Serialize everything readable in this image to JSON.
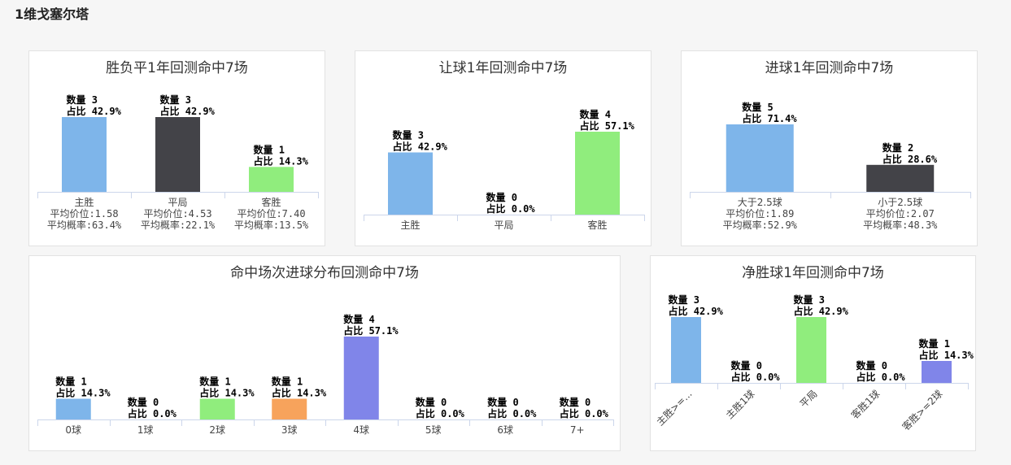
{
  "page": {
    "title": "1维戈塞尔塔"
  },
  "chart_data": [
    {
      "id": "c1",
      "type": "bar",
      "title": "胜负平1年回测命中7场",
      "categories": [
        "主胜",
        "平局",
        "客胜"
      ],
      "values": [
        3,
        3,
        1
      ],
      "value_labels": [
        "数量 3",
        "数量 3",
        "数量 1"
      ],
      "pct_labels": [
        "占比 42.9%",
        "占比 42.9%",
        "占比 14.3%"
      ],
      "extra_labels": [
        [
          "平均价位:1.58",
          "平均概率:63.4%"
        ],
        [
          "平均价位:4.53",
          "平均概率:22.1%"
        ],
        [
          "平均价位:7.40",
          "平均概率:13.5%"
        ]
      ],
      "colors": [
        "#7eb5ea",
        "#434348",
        "#90ed7d"
      ],
      "ylim": [
        0,
        3
      ]
    },
    {
      "id": "c2",
      "type": "bar",
      "title": "让球1年回测命中7场",
      "categories": [
        "主胜",
        "平局",
        "客胜"
      ],
      "values": [
        3,
        0,
        4
      ],
      "value_labels": [
        "数量 3",
        "数量 0",
        "数量 4"
      ],
      "pct_labels": [
        "占比 42.9%",
        "占比 0.0%",
        "占比 57.1%"
      ],
      "colors": [
        "#7eb5ea",
        "#434348",
        "#90ed7d"
      ],
      "ylim": [
        0,
        4
      ]
    },
    {
      "id": "c3",
      "type": "bar",
      "title": "进球1年回测命中7场",
      "categories": [
        "大于2.5球",
        "小于2.5球"
      ],
      "values": [
        5,
        2
      ],
      "value_labels": [
        "数量 5",
        "数量 2"
      ],
      "pct_labels": [
        "占比 71.4%",
        "占比 28.6%"
      ],
      "extra_labels": [
        [
          "平均价位:1.89",
          "平均概率:52.9%"
        ],
        [
          "平均价位:2.07",
          "平均概率:48.3%"
        ]
      ],
      "colors": [
        "#7eb5ea",
        "#434348"
      ],
      "ylim": [
        0,
        5
      ]
    },
    {
      "id": "c4",
      "type": "bar",
      "title": "命中场次进球分布回测命中7场",
      "categories": [
        "0球",
        "1球",
        "2球",
        "3球",
        "4球",
        "5球",
        "6球",
        "7+"
      ],
      "values": [
        1,
        0,
        1,
        1,
        4,
        0,
        0,
        0
      ],
      "value_labels": [
        "数量 1",
        "数量 0",
        "数量 1",
        "数量 1",
        "数量 4",
        "数量 0",
        "数量 0",
        "数量 0"
      ],
      "pct_labels": [
        "占比 14.3%",
        "占比 0.0%",
        "占比 14.3%",
        "占比 14.3%",
        "占比 57.1%",
        "占比 0.0%",
        "占比 0.0%",
        "占比 0.0%"
      ],
      "colors": [
        "#7eb5ea",
        "#434348",
        "#90ed7d",
        "#f7a35c",
        "#8085e9",
        "#f15c80",
        "#e4d354",
        "#2b908f"
      ],
      "ylim": [
        0,
        4
      ]
    },
    {
      "id": "c5",
      "type": "bar",
      "title": "净胜球1年回测命中7场",
      "categories": [
        "主胜>=...",
        "主胜1球",
        "平局",
        "客胜1球",
        "客胜>=2球"
      ],
      "values": [
        3,
        0,
        3,
        0,
        1
      ],
      "value_labels": [
        "数量 3",
        "数量 0",
        "数量 3",
        "数量 0",
        "数量 1"
      ],
      "pct_labels": [
        "占比 42.9%",
        "占比 0.0%",
        "占比 42.9%",
        "占比 0.0%",
        "占比 14.3%"
      ],
      "colors": [
        "#7eb5ea",
        "#434348",
        "#90ed7d",
        "#f7a35c",
        "#8085e9"
      ],
      "ylim": [
        0,
        3
      ]
    }
  ]
}
